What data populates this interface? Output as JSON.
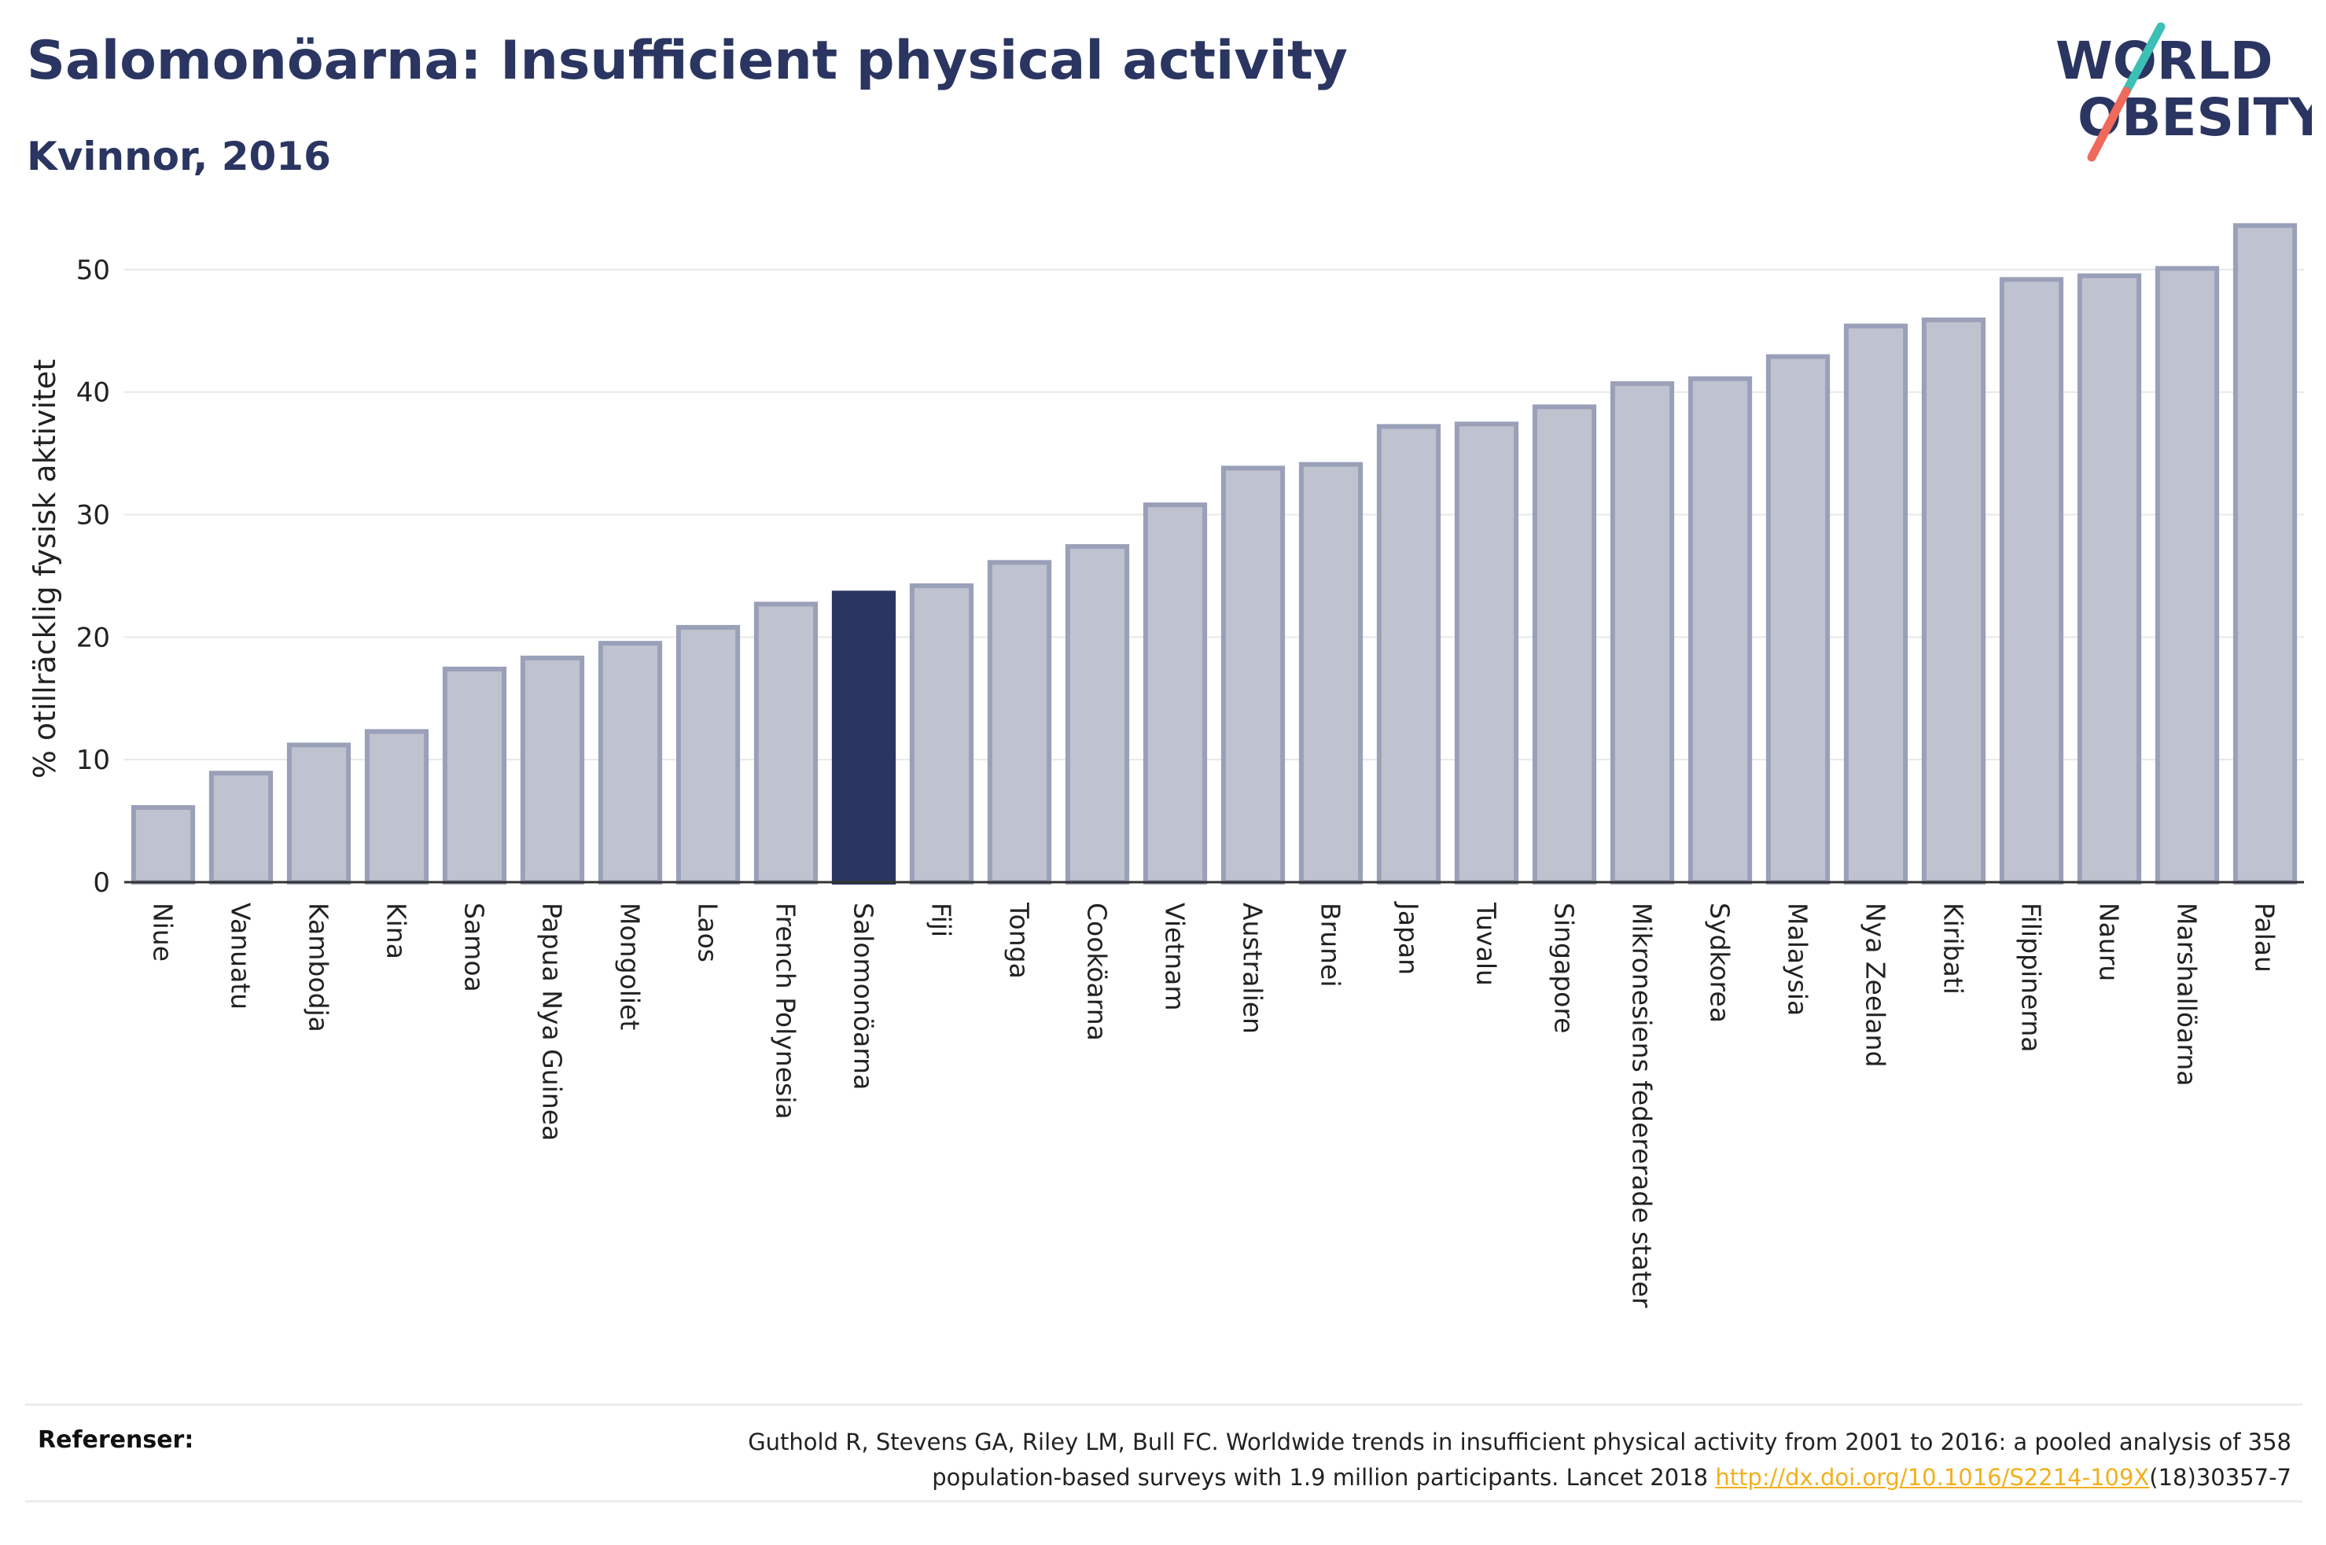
{
  "header": {
    "title": "Salomonöarna: Insufficient physical activity",
    "subtitle": "Kvinnor, 2016"
  },
  "logo": {
    "line1": "WORLD",
    "line2": "OBESITY",
    "text_color": "#2b3561",
    "slash_colors": [
      "#3cbfb4",
      "#ef6a5b"
    ]
  },
  "chart_data": {
    "type": "bar",
    "title": "Salomonöarna: Insufficient physical activity",
    "subtitle": "Kvinnor, 2016",
    "xlabel": "",
    "ylabel": "% otillräcklig fysisk aktivitet",
    "ylim": [
      0,
      55
    ],
    "yticks": [
      0,
      10,
      20,
      30,
      40,
      50
    ],
    "grid": true,
    "highlight": "Salomonöarna",
    "colors": {
      "bar": "#bfc2cf",
      "bar_border": "#9aa0b8",
      "highlight": "#2b3561"
    },
    "categories": [
      "Niue",
      "Vanuatu",
      "Kambodja",
      "Kina",
      "Samoa",
      "Papua Nya Guinea",
      "Mongoliet",
      "Laos",
      "French Polynesia",
      "Salomonöarna",
      "Fiji",
      "Tonga",
      "Cooköarna",
      "Vietnam",
      "Australien",
      "Brunei",
      "Japan",
      "Tuvalu",
      "Singapore",
      "Mikronesiens federerade stater",
      "Sydkorea",
      "Malaysia",
      "Nya Zeeland",
      "Kiribati",
      "Filippinerna",
      "Nauru",
      "Marshallöarna",
      "Palau"
    ],
    "values": [
      6.1,
      8.9,
      11.2,
      12.3,
      17.4,
      18.3,
      19.5,
      20.8,
      22.7,
      23.6,
      24.2,
      26.1,
      27.4,
      30.8,
      33.8,
      34.1,
      37.2,
      37.4,
      38.8,
      40.7,
      41.1,
      42.9,
      45.4,
      45.9,
      49.2,
      49.5,
      50.1,
      53.6
    ]
  },
  "footer": {
    "ref_label": "Referenser:",
    "ref_line1": "Guthold R, Stevens GA, Riley LM, Bull FC. Worldwide trends in insufficient physical activity from 2001 to 2016: a pooled analysis of 358",
    "ref_line2_pre": "population-based surveys with 1.9 million participants. Lancet 2018 ",
    "ref_link": "http://dx.doi.org/10.1016/S2214-109X",
    "ref_line2_post": "(18)30357-7"
  }
}
